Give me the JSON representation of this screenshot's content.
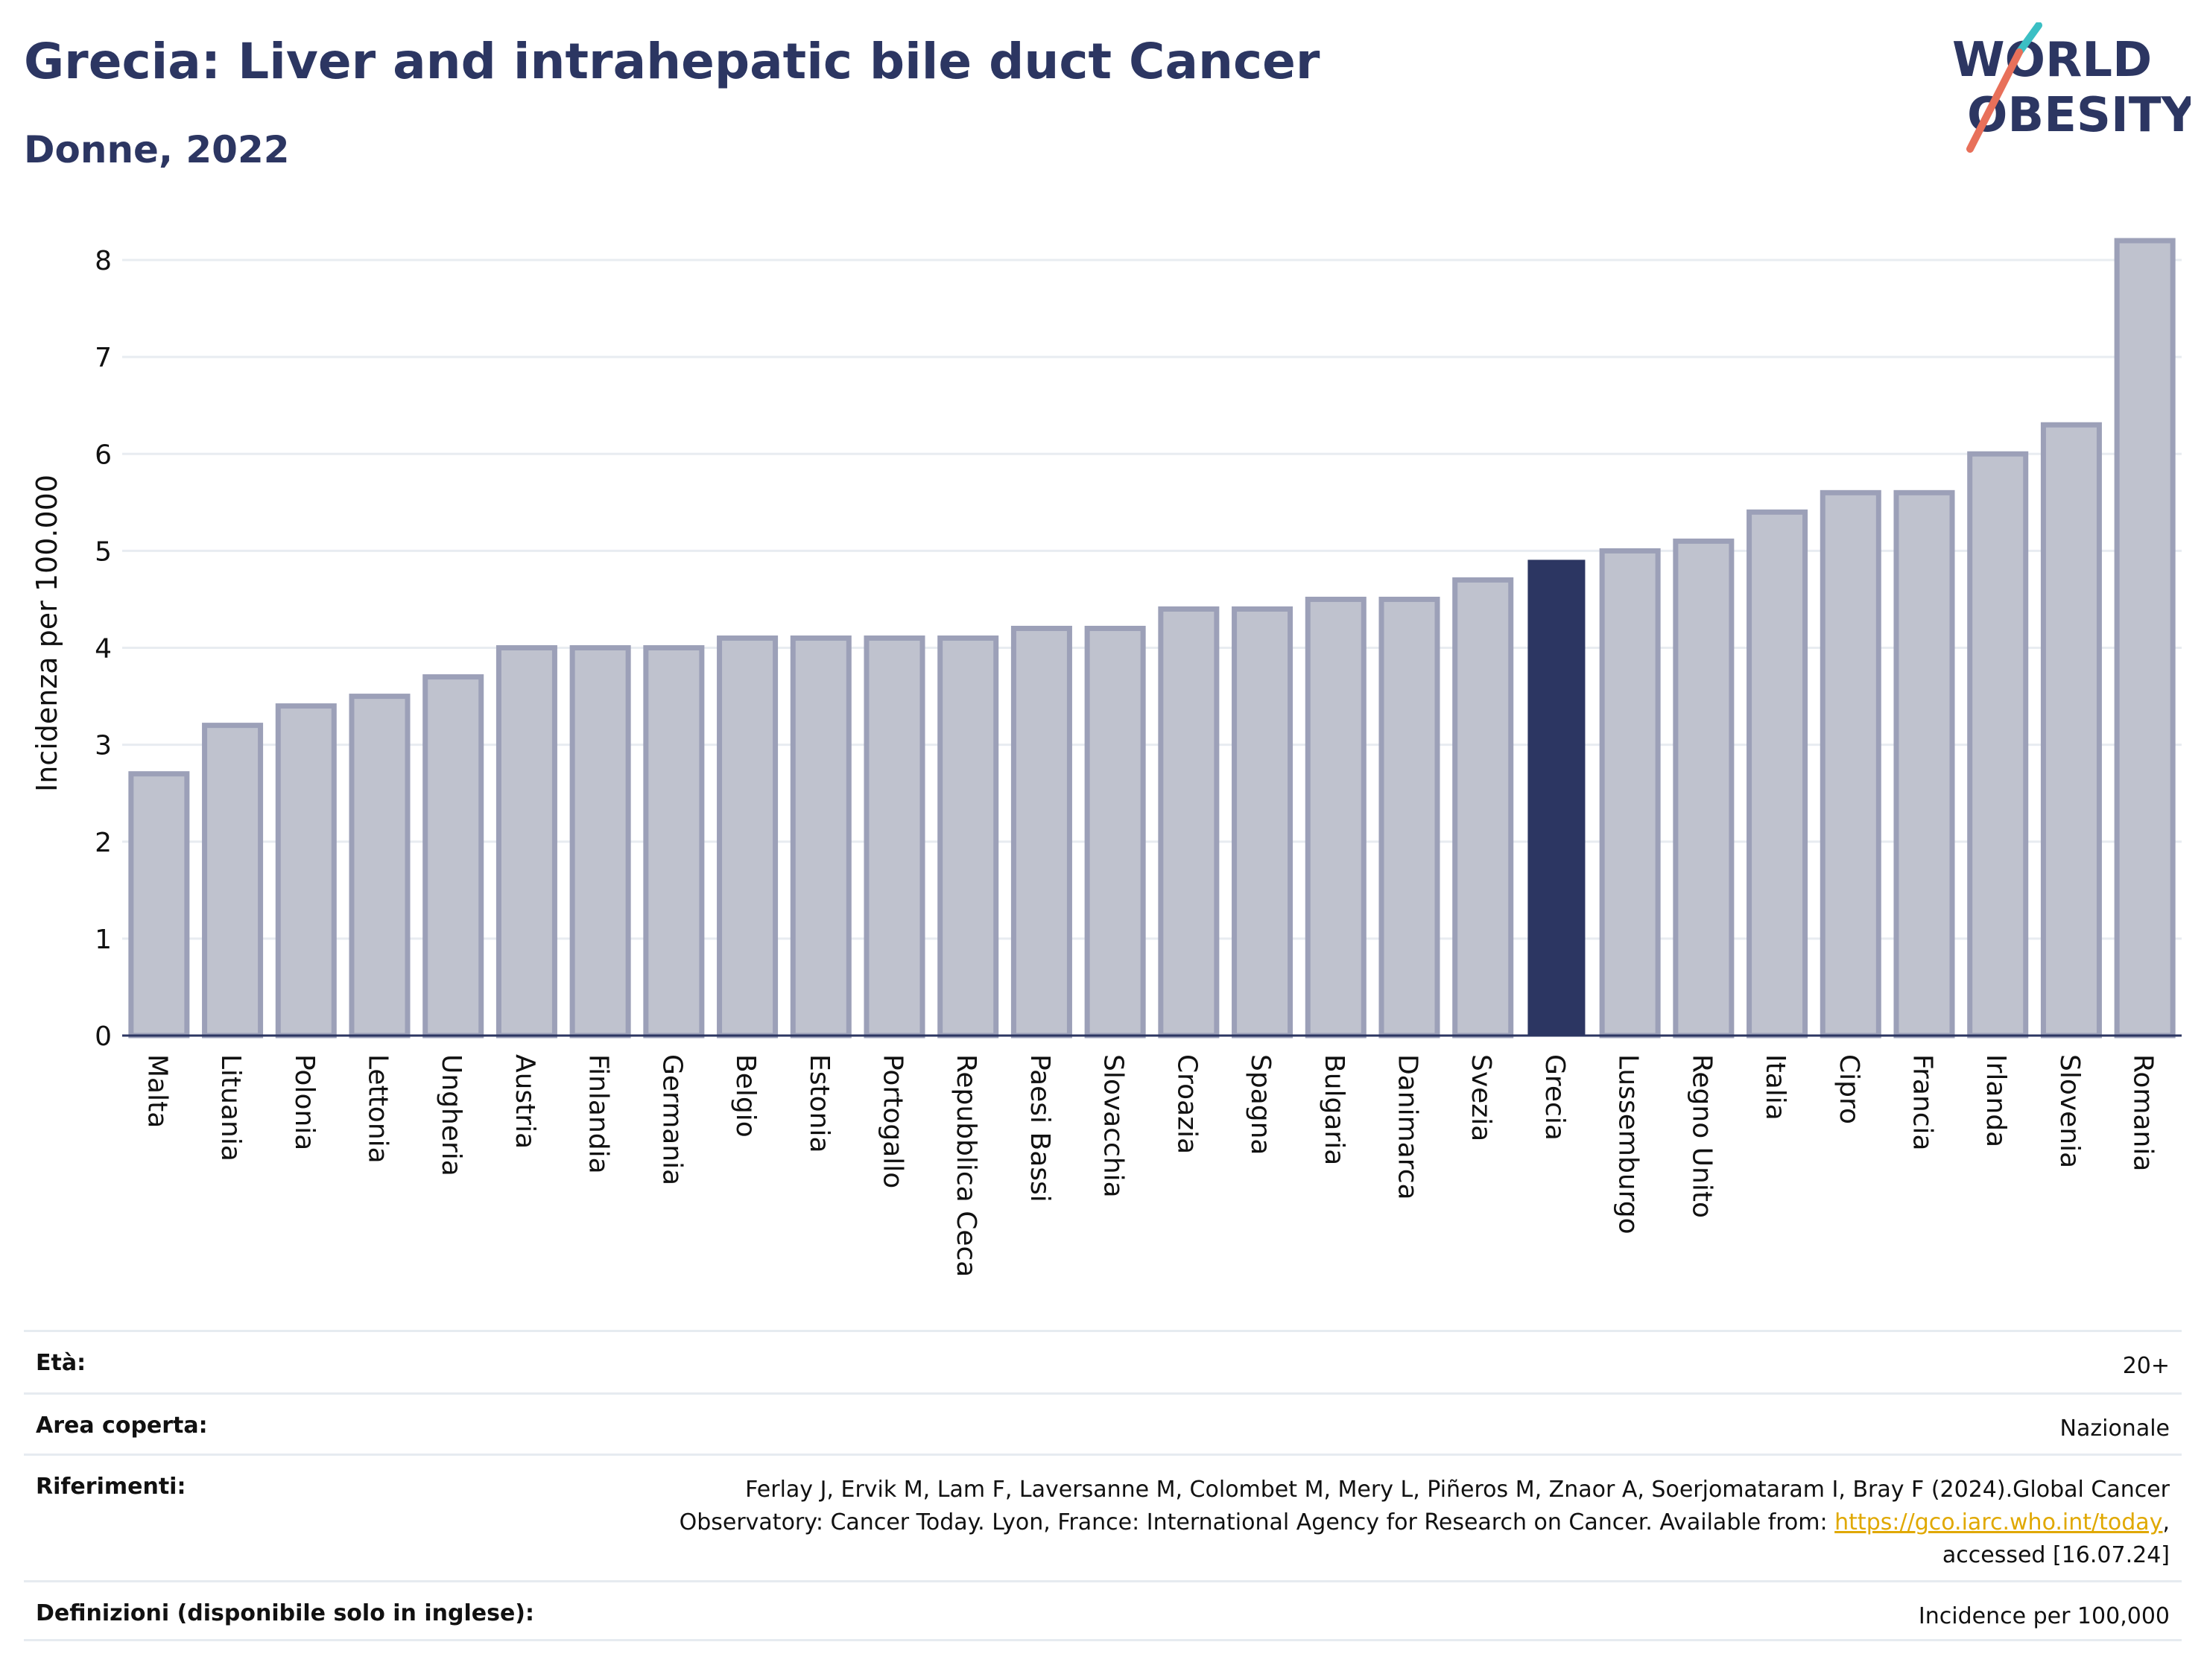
{
  "header": {
    "title": "Grecia: Liver and intrahepatic bile duct Cancer",
    "subtitle": "Donne, 2022"
  },
  "logo": {
    "line1": "WORLD",
    "line2": "OBESITY",
    "colors": {
      "text": "#2c3662",
      "slash_top": "#3bbfc4",
      "slash_bottom": "#e8705a"
    }
  },
  "colors": {
    "bar": "#bfc2ce",
    "bar_border": "#9ca0b8",
    "highlight": "#2c3662",
    "grid": "#e8ecf1"
  },
  "chart_data": {
    "type": "bar",
    "title": "",
    "xlabel": "",
    "ylabel": "Incidenza per 100.000",
    "ylim": [
      0,
      8.3
    ],
    "yticks": [
      0,
      1,
      2,
      3,
      4,
      5,
      6,
      7,
      8
    ],
    "grid": true,
    "highlight": "Grecia",
    "categories": [
      "Malta",
      "Lituania",
      "Polonia",
      "Lettonia",
      "Ungheria",
      "Austria",
      "Finlandia",
      "Germania",
      "Belgio",
      "Estonia",
      "Portogallo",
      "Repubblica Ceca",
      "Paesi Bassi",
      "Slovacchia",
      "Croazia",
      "Spagna",
      "Bulgaria",
      "Danimarca",
      "Svezia",
      "Grecia",
      "Lussemburgo",
      "Regno Unito",
      "Italia",
      "Cipro",
      "Francia",
      "Irlanda",
      "Slovenia",
      "Romania"
    ],
    "values": [
      2.7,
      3.2,
      3.4,
      3.5,
      3.7,
      4.0,
      4.0,
      4.0,
      4.1,
      4.1,
      4.1,
      4.1,
      4.2,
      4.2,
      4.4,
      4.4,
      4.5,
      4.5,
      4.7,
      4.9,
      5.0,
      5.1,
      5.4,
      5.6,
      5.6,
      6.0,
      6.3,
      8.2
    ]
  },
  "info": {
    "age_label": "Età:",
    "age_value": "20+",
    "area_label": "Area coperta:",
    "area_value": "Nazionale",
    "ref_label": "Riferimenti:",
    "ref_text_1": "Ferlay J, Ervik M, Lam F, Laversanne M, Colombet M, Mery L, Piñeros M, Znaor A, Soerjomataram I, Bray F (2024).Global Cancer Observatory: Cancer Today. Lyon, France: International Agency for Research on Cancer. Available from: ",
    "ref_link": "https://gco.iarc.who.int/today",
    "ref_text_2": ", accessed [16.07.24]",
    "def_label": "Definizioni (disponibile solo in inglese):",
    "def_value": "Incidence per 100,000"
  }
}
